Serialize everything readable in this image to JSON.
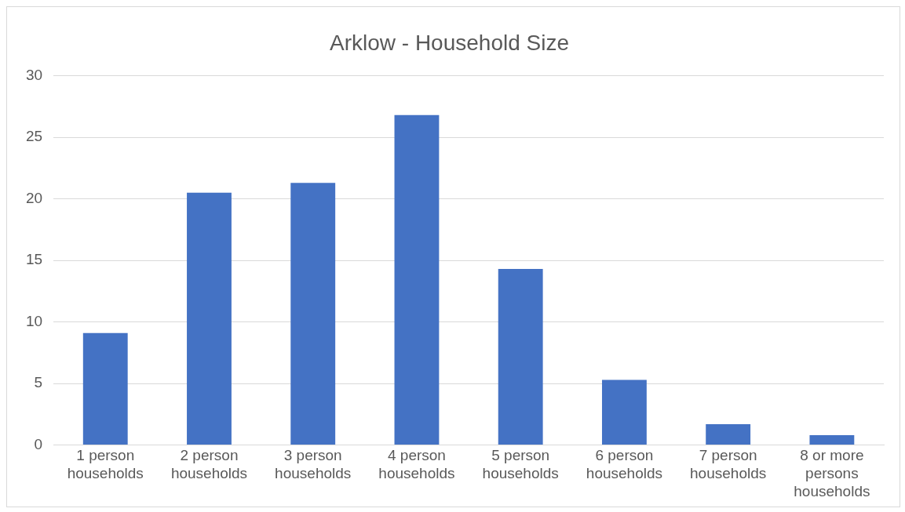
{
  "chart_data": {
    "type": "bar",
    "title": "Arklow - Household Size",
    "categories": [
      "1 person households",
      "2 person households",
      "3 person households",
      "4 person households",
      "5 person households",
      "6 person households",
      "7 person households",
      "8 or more persons households"
    ],
    "values": [
      9.1,
      20.5,
      21.3,
      26.8,
      14.3,
      5.3,
      1.7,
      0.8
    ],
    "color": "#4472c4",
    "ylim": [
      0,
      30
    ],
    "yticks": [
      0,
      5,
      10,
      15,
      20,
      25,
      30
    ],
    "grid": "y",
    "legend": false
  }
}
